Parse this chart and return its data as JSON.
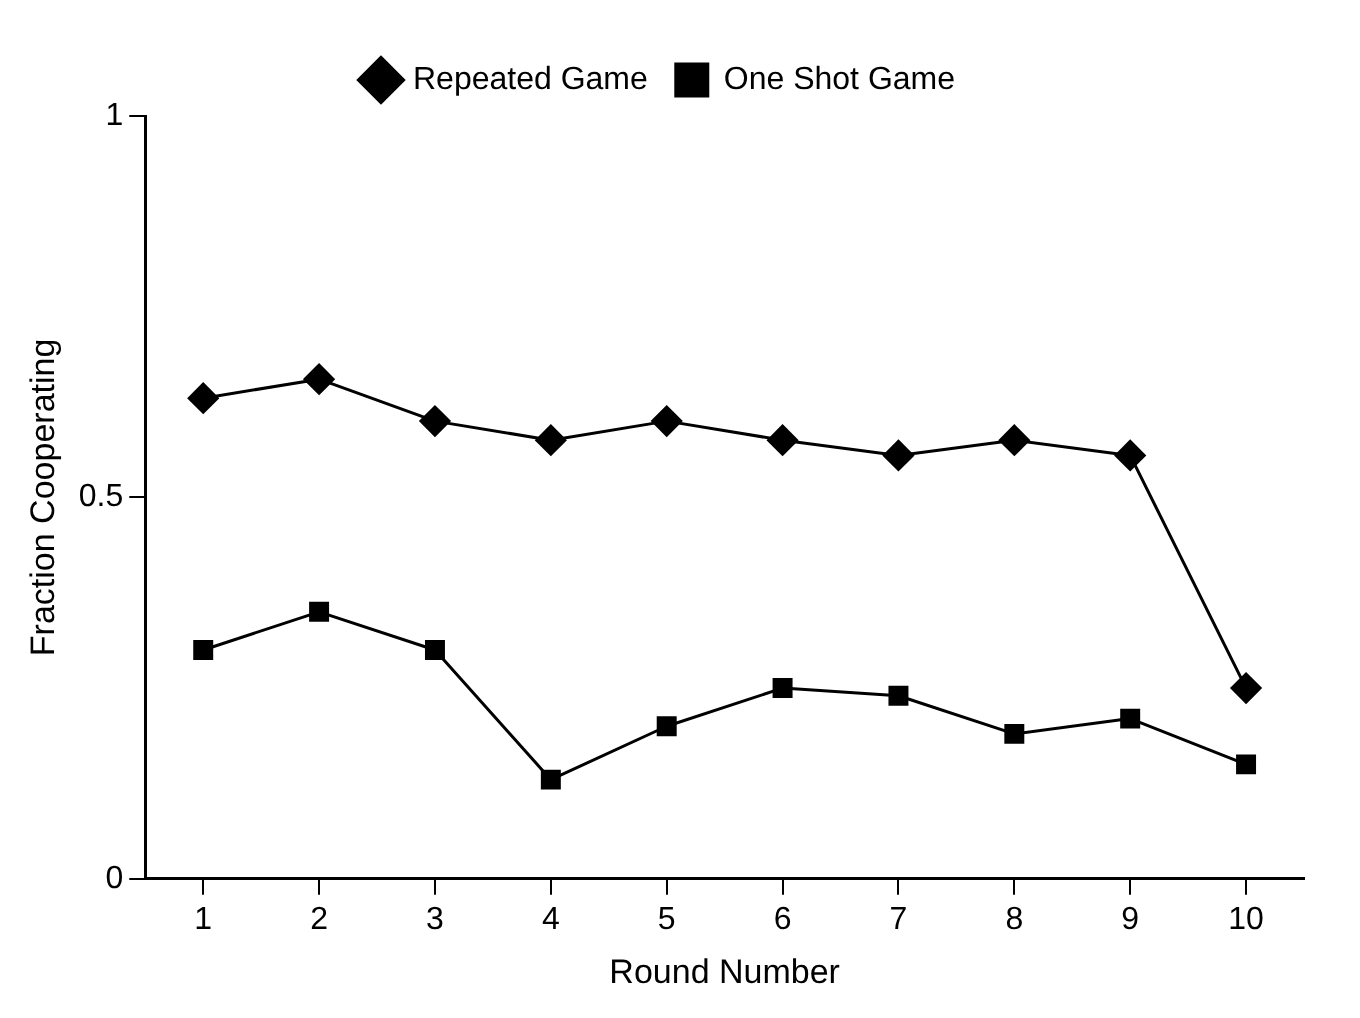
{
  "chart_data": {
    "type": "line",
    "xlabel": "Round Number",
    "ylabel": "Fraction Cooperating",
    "x": [
      1,
      2,
      3,
      4,
      5,
      6,
      7,
      8,
      9,
      10
    ],
    "series": [
      {
        "name": "Repeated Game",
        "color": "#000000",
        "marker": "diamond",
        "values": [
          0.63,
          0.655,
          0.6,
          0.575,
          0.6,
          0.575,
          0.555,
          0.575,
          0.555,
          0.25
        ]
      },
      {
        "name": "One Shot Game",
        "color": "#000000",
        "marker": "square",
        "values": [
          0.3,
          0.35,
          0.3,
          0.13,
          0.2,
          0.25,
          0.24,
          0.19,
          0.21,
          0.15
        ]
      }
    ],
    "xlim": [
      0.5,
      10.5
    ],
    "xticks": [
      1,
      2,
      3,
      4,
      5,
      6,
      7,
      8,
      9,
      10
    ],
    "ylim": [
      0,
      1
    ],
    "yticks": [
      0,
      0.5,
      1
    ],
    "grid": false,
    "legend": "top",
    "line_style": "solid"
  }
}
